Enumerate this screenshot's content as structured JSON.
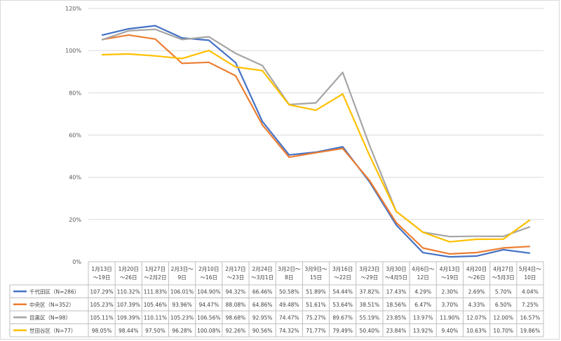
{
  "chart_data": {
    "type": "line",
    "title": "",
    "xlabel": "",
    "ylabel": "",
    "ylim": [
      0,
      120
    ],
    "y_ticks": [
      "0%",
      "20%",
      "40%",
      "60%",
      "80%",
      "100%",
      "120%"
    ],
    "grid": true,
    "legend": "bottom-table",
    "categories": [
      [
        "1月13日",
        "～19日"
      ],
      [
        "1月20日",
        "～26日"
      ],
      [
        "1月27日",
        "～2月2日"
      ],
      [
        "2月3日～",
        "9日"
      ],
      [
        "2月10日",
        "～16日"
      ],
      [
        "2月17日",
        "～23日"
      ],
      [
        "2月24日",
        "～3月1日"
      ],
      [
        "3月2日～",
        "8日"
      ],
      [
        "3月9日～",
        "15日"
      ],
      [
        "3月16日",
        "～22日"
      ],
      [
        "3月23日",
        "～29日"
      ],
      [
        "3月30日",
        "～4月5日"
      ],
      [
        "4月6日～",
        "12日"
      ],
      [
        "4月13日",
        "～19日"
      ],
      [
        "4月20日",
        "～26日"
      ],
      [
        "4月27日",
        "～5月3日"
      ],
      [
        "5月4日～",
        "10日"
      ]
    ],
    "series": [
      {
        "name": "千代田区（N=286）",
        "color": "#4472c4",
        "values": [
          107.29,
          110.32,
          111.83,
          106.01,
          104.9,
          94.32,
          66.46,
          50.58,
          51.89,
          54.44,
          37.82,
          17.43,
          4.29,
          2.3,
          2.69,
          5.7,
          4.04
        ],
        "labels": [
          "107.29%",
          "110.32%",
          "111.83%",
          "106.01%",
          "104.90%",
          "94.32%",
          "66.46%",
          "50.58%",
          "51.89%",
          "54.44%",
          "37.82%",
          "17.43%",
          "4.29%",
          "2.30%",
          "2.69%",
          "5.70%",
          "4.04%"
        ]
      },
      {
        "name": "中央区（N=352）",
        "color": "#ed7d31",
        "values": [
          105.23,
          107.39,
          105.46,
          93.96,
          94.47,
          88.08,
          64.86,
          49.48,
          51.61,
          53.64,
          38.51,
          18.56,
          6.47,
          3.7,
          4.33,
          6.5,
          7.25
        ],
        "labels": [
          "105.23%",
          "107.39%",
          "105.46%",
          "93.96%",
          "94.47%",
          "88.08%",
          "64.86%",
          "49.48%",
          "51.61%",
          "53.64%",
          "38.51%",
          "18.56%",
          "6.47%",
          "3.70%",
          "4.33%",
          "6.50%",
          "7.25%"
        ]
      },
      {
        "name": "目黒区（N=98）",
        "color": "#a5a5a5",
        "values": [
          105.11,
          109.39,
          110.11,
          105.23,
          106.56,
          98.68,
          92.95,
          74.47,
          75.27,
          89.67,
          55.19,
          23.85,
          13.97,
          11.9,
          12.07,
          12.0,
          16.57
        ],
        "labels": [
          "105.11%",
          "109.39%",
          "110.11%",
          "105.23%",
          "106.56%",
          "98.68%",
          "92.95%",
          "74.47%",
          "75.27%",
          "89.67%",
          "55.19%",
          "23.85%",
          "13.97%",
          "11.90%",
          "12.07%",
          "12.00%",
          "16.57%"
        ]
      },
      {
        "name": "世田谷区（N=77）",
        "color": "#ffc000",
        "values": [
          98.05,
          98.44,
          97.5,
          96.28,
          100.08,
          92.26,
          90.56,
          74.32,
          71.77,
          79.49,
          50.4,
          23.84,
          13.92,
          9.4,
          10.63,
          10.7,
          19.86
        ],
        "labels": [
          "98.05%",
          "98.44%",
          "97.50%",
          "96.28%",
          "100.08%",
          "92.26%",
          "90.56%",
          "74.32%",
          "71.77%",
          "79.49%",
          "50.40%",
          "23.84%",
          "13.92%",
          "9.40%",
          "10.63%",
          "10.70%",
          "19.86%"
        ]
      }
    ]
  }
}
